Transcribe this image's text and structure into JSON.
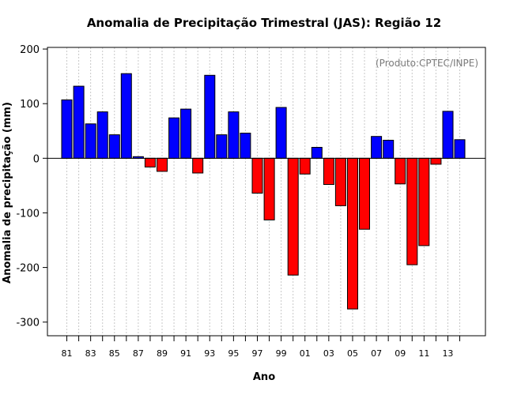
{
  "chart_data": {
    "type": "bar",
    "title": "Anomalia de Precipitação Trimestral (JAS): Região 12",
    "xlabel": "Ano",
    "ylabel": "Anomalia de precipitação (mm)",
    "credit": "(Produto:CPTEC/INPE)",
    "ylim": [
      -325,
      203
    ],
    "yticks": [
      200,
      100,
      0,
      -100,
      -200,
      -300
    ],
    "ytick_labels": [
      "200",
      "100",
      "0",
      "-100",
      "-200",
      "-300"
    ],
    "years": [
      "1981",
      "1982",
      "1983",
      "1984",
      "1985",
      "1986",
      "1987",
      "1988",
      "1989",
      "1990",
      "1991",
      "1992",
      "1993",
      "1994",
      "1995",
      "1996",
      "1997",
      "1998",
      "1999",
      "2000",
      "2001",
      "2002",
      "2003",
      "2004",
      "2005",
      "2006",
      "2007",
      "2008",
      "2009",
      "2010",
      "2011",
      "2012",
      "2013",
      "2014"
    ],
    "values": [
      107,
      132,
      63,
      85,
      43,
      155,
      3,
      -16,
      -24,
      74,
      90,
      -27,
      152,
      43,
      85,
      46,
      -64,
      -113,
      93,
      -214,
      -29,
      20,
      -48,
      -87,
      -276,
      -130,
      40,
      33,
      -47,
      -195,
      -160,
      -11,
      86,
      34
    ],
    "xtick_labels": [
      "81",
      "83",
      "85",
      "87",
      "89",
      "91",
      "93",
      "95",
      "97",
      "99",
      "01",
      "03",
      "05",
      "07",
      "09",
      "11",
      "13"
    ],
    "xtick_index": [
      0,
      2,
      4,
      6,
      8,
      10,
      12,
      14,
      16,
      18,
      20,
      22,
      24,
      26,
      28,
      30,
      32
    ],
    "colors": {
      "positive": "#0000ff",
      "negative": "#ff0000",
      "grid": "#c8c8c8",
      "axis": "#000000"
    },
    "grid": true
  }
}
